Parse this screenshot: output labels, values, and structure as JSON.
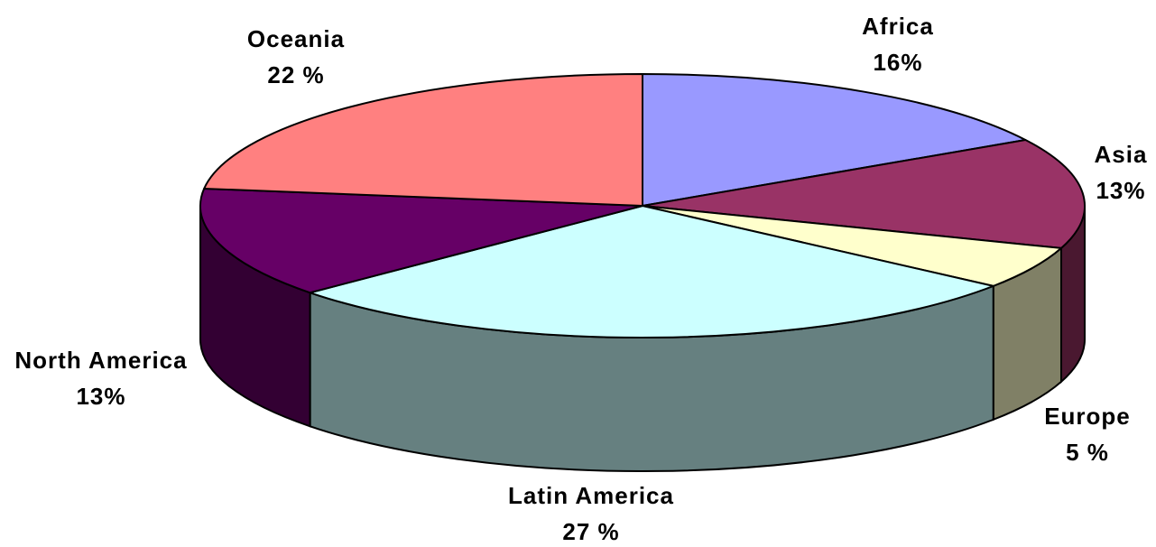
{
  "chart_data": {
    "type": "pie",
    "variant": "3d",
    "title": "",
    "start_angle_deg": 0,
    "direction": "clockwise",
    "slices": [
      {
        "label": "Africa",
        "percent_label": "16%",
        "value": 16,
        "top_color": "#9999FF",
        "side_color": "#6B6BB3"
      },
      {
        "label": "Asia",
        "percent_label": "13%",
        "value": 13,
        "top_color": "#993366",
        "side_color": "#4A1830"
      },
      {
        "label": "Europe",
        "percent_label": "5 %",
        "value": 5,
        "top_color": "#FFFFCC",
        "side_color": "#808066"
      },
      {
        "label": "Latin America",
        "percent_label": "27 %",
        "value": 27,
        "top_color": "#CCFFFF",
        "side_color": "#668080"
      },
      {
        "label": "North America",
        "percent_label": "13%",
        "value": 13,
        "top_color": "#660066",
        "side_color": "#330033"
      },
      {
        "label": "Oceania",
        "percent_label": "22 %",
        "value": 22,
        "top_color": "#FF8080",
        "side_color": "#804040"
      }
    ]
  }
}
